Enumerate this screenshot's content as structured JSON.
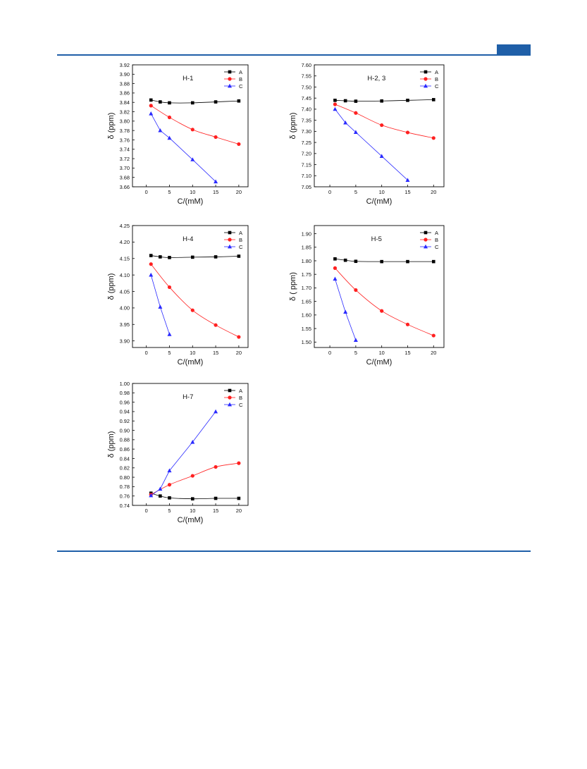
{
  "page": {
    "accent_color": "#1f5fa8"
  },
  "chart_data": [
    {
      "type": "line",
      "title": "H-1",
      "xlabel": "C/(mM)",
      "ylabel": "δ (ppm)",
      "xlim": [
        -3,
        22
      ],
      "ylim": [
        3.66,
        3.92
      ],
      "xticks": [
        0,
        5,
        10,
        15,
        20
      ],
      "yticks": [
        3.66,
        3.68,
        3.7,
        3.72,
        3.74,
        3.76,
        3.78,
        3.8,
        3.82,
        3.84,
        3.86,
        3.88,
        3.9,
        3.92
      ],
      "ytick_decimals": 2,
      "legend_placement": "top-right",
      "series": [
        {
          "name": "A",
          "color": "#000000",
          "marker": "square",
          "x": [
            1,
            3,
            5,
            10,
            15,
            20
          ],
          "y": [
            3.845,
            3.841,
            3.839,
            3.839,
            3.841,
            3.843
          ]
        },
        {
          "name": "B",
          "color": "#ff2020",
          "marker": "circle",
          "x": [
            1,
            5,
            10,
            15,
            20
          ],
          "y": [
            3.833,
            3.808,
            3.782,
            3.766,
            3.751
          ]
        },
        {
          "name": "C",
          "color": "#2a2aff",
          "marker": "triangle",
          "x": [
            1,
            3,
            5,
            10,
            15
          ],
          "y": [
            3.816,
            3.78,
            3.764,
            3.718,
            3.671
          ]
        }
      ]
    },
    {
      "type": "line",
      "title": "H-2, 3",
      "xlabel": "C/(mM)",
      "ylabel": "δ (ppm)",
      "xlim": [
        -3,
        22
      ],
      "ylim": [
        7.05,
        7.6
      ],
      "xticks": [
        0,
        5,
        10,
        15,
        20
      ],
      "yticks": [
        7.05,
        7.1,
        7.15,
        7.2,
        7.25,
        7.3,
        7.35,
        7.4,
        7.45,
        7.5,
        7.55,
        7.6
      ],
      "ytick_decimals": 2,
      "legend_placement": "top-right",
      "series": [
        {
          "name": "A",
          "color": "#000000",
          "marker": "square",
          "x": [
            1,
            3,
            5,
            10,
            15,
            20
          ],
          "y": [
            7.44,
            7.438,
            7.436,
            7.437,
            7.44,
            7.443
          ]
        },
        {
          "name": "B",
          "color": "#ff2020",
          "marker": "circle",
          "x": [
            1,
            5,
            10,
            15,
            20
          ],
          "y": [
            7.422,
            7.383,
            7.328,
            7.295,
            7.27
          ]
        },
        {
          "name": "C",
          "color": "#2a2aff",
          "marker": "triangle",
          "x": [
            1,
            3,
            5,
            10,
            15
          ],
          "y": [
            7.4,
            7.339,
            7.296,
            7.188,
            7.08
          ]
        }
      ]
    },
    {
      "type": "line",
      "title": "H-4",
      "xlabel": "C/(mM)",
      "ylabel": "δ (ppm)",
      "xlim": [
        -3,
        22
      ],
      "ylim": [
        3.88,
        4.25
      ],
      "xticks": [
        0,
        5,
        10,
        15,
        20
      ],
      "yticks": [
        3.9,
        3.95,
        4.0,
        4.05,
        4.1,
        4.15,
        4.2,
        4.25
      ],
      "ytick_decimals": 2,
      "legend_placement": "top-right",
      "series": [
        {
          "name": "A",
          "color": "#000000",
          "marker": "square",
          "x": [
            1,
            3,
            5,
            10,
            15,
            20
          ],
          "y": [
            4.159,
            4.155,
            4.153,
            4.154,
            4.155,
            4.157
          ]
        },
        {
          "name": "B",
          "color": "#ff2020",
          "marker": "circle",
          "x": [
            1,
            5,
            10,
            15,
            20
          ],
          "y": [
            4.133,
            4.063,
            3.993,
            3.948,
            3.912
          ]
        },
        {
          "name": "C",
          "color": "#2a2aff",
          "marker": "triangle",
          "x": [
            1,
            3,
            5
          ],
          "y": [
            4.1,
            4.003,
            3.92
          ]
        }
      ]
    },
    {
      "type": "line",
      "title": "H-5",
      "xlabel": "C/(mM)",
      "ylabel": "δ ( ppm)",
      "xlim": [
        -3,
        22
      ],
      "ylim": [
        1.48,
        1.93
      ],
      "xticks": [
        0,
        5,
        10,
        15,
        20
      ],
      "yticks": [
        1.5,
        1.55,
        1.6,
        1.65,
        1.7,
        1.75,
        1.8,
        1.85,
        1.9
      ],
      "ytick_decimals": 2,
      "legend_placement": "top-right",
      "series": [
        {
          "name": "A",
          "color": "#000000",
          "marker": "square",
          "x": [
            1,
            3,
            5,
            10,
            15,
            20
          ],
          "y": [
            1.807,
            1.802,
            1.798,
            1.797,
            1.797,
            1.797
          ]
        },
        {
          "name": "B",
          "color": "#ff2020",
          "marker": "circle",
          "x": [
            1,
            5,
            10,
            15,
            20
          ],
          "y": [
            1.773,
            1.692,
            1.615,
            1.565,
            1.524
          ]
        },
        {
          "name": "C",
          "color": "#2a2aff",
          "marker": "triangle",
          "x": [
            1,
            3,
            5
          ],
          "y": [
            1.733,
            1.611,
            1.507
          ]
        }
      ]
    },
    {
      "type": "line",
      "title": "H-7",
      "xlabel": "C/(mM)",
      "ylabel": "δ (ppm)",
      "xlim": [
        -3,
        22
      ],
      "ylim": [
        0.74,
        1.0
      ],
      "xticks": [
        0,
        5,
        10,
        15,
        20
      ],
      "yticks": [
        0.74,
        0.76,
        0.78,
        0.8,
        0.82,
        0.84,
        0.86,
        0.88,
        0.9,
        0.92,
        0.94,
        0.96,
        0.98,
        1.0
      ],
      "ytick_decimals": 2,
      "legend_placement": "top-right",
      "series": [
        {
          "name": "A",
          "color": "#000000",
          "marker": "square",
          "x": [
            1,
            3,
            5,
            10,
            15,
            20
          ],
          "y": [
            0.766,
            0.76,
            0.756,
            0.754,
            0.755,
            0.755
          ]
        },
        {
          "name": "B",
          "color": "#ff2020",
          "marker": "circle",
          "x": [
            1,
            5,
            10,
            15,
            20
          ],
          "y": [
            0.763,
            0.784,
            0.803,
            0.822,
            0.83
          ]
        },
        {
          "name": "C",
          "color": "#2a2aff",
          "marker": "triangle",
          "x": [
            1,
            3,
            5,
            10,
            15
          ],
          "y": [
            0.761,
            0.775,
            0.814,
            0.875,
            0.94
          ]
        }
      ]
    }
  ]
}
